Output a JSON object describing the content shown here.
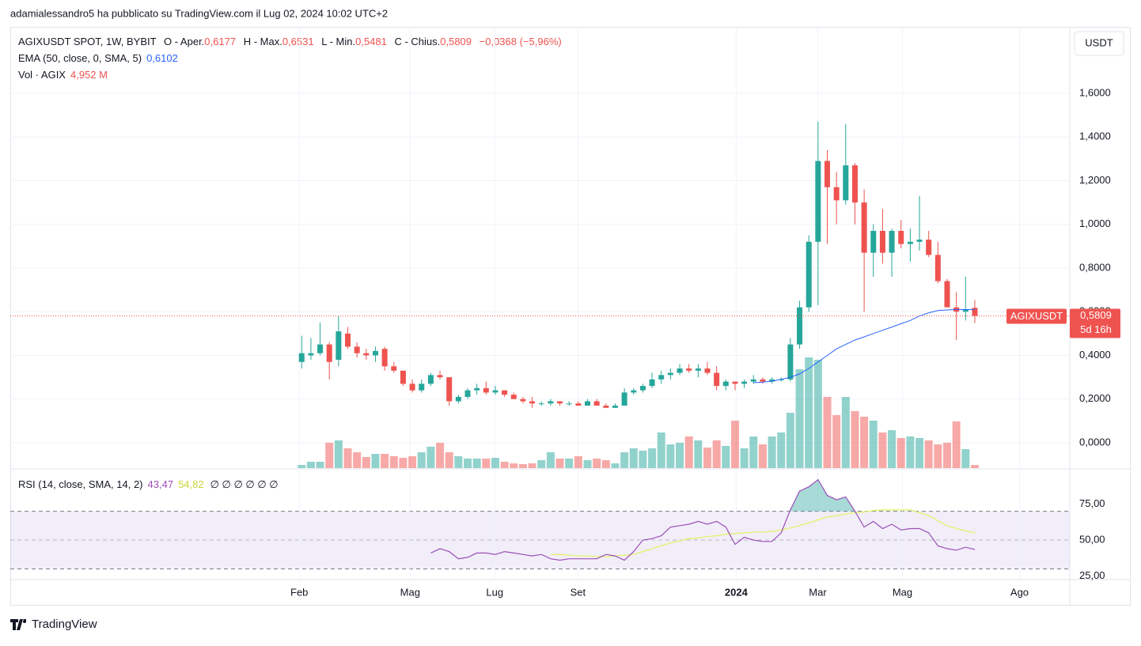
{
  "header": {
    "byline": "adamialessandro5 ha pubblicato su TradingView.com il Lug 02, 2024 10:02 UTC+2",
    "footer": "TradingView",
    "currency": "USDT"
  },
  "legend": {
    "symbol": "AGIXUSDT SPOT, 1W, BYBIT",
    "o_label": "O - Aper.",
    "o": "0,6177",
    "h_label": "H - Max.",
    "h": "0,6531",
    "l_label": "L - Min.",
    "l": "0,5481",
    "c_label": "C - Chius.",
    "c": "0,5809",
    "change": "−0,0368 (−5,96%)",
    "ema_label": "EMA (50, close, 0, SMA, 5)",
    "ema": "0,6102",
    "vol_label": "Vol · AGIX",
    "vol": "4,952 M",
    "rsi_label": "RSI (14, close, SMA, 14, 2)",
    "rsi": "43,47",
    "rsi_ma": "54,82",
    "rsi_extra": "∅ ∅ ∅ ∅ ∅ ∅"
  },
  "chart_data": {
    "type": "candlestick",
    "symbol_tag": "AGIXUSDT",
    "last_label": "0,5809",
    "countdown": "5d 16h",
    "up_color": "#26a69a",
    "down_color": "#ef5350",
    "open": [
      0.37,
      0.4,
      0.41,
      0.45,
      0.38,
      0.5,
      0.44,
      0.41,
      0.4,
      0.43,
      0.35,
      0.33,
      0.27,
      0.24,
      0.27,
      0.31,
      0.3,
      0.19,
      0.21,
      0.24,
      0.25,
      0.23,
      0.24,
      0.22,
      0.2,
      0.19,
      0.18,
      0.18,
      0.19,
      0.18,
      0.18,
      0.17,
      0.19,
      0.17,
      0.16,
      0.17,
      0.23,
      0.24,
      0.26,
      0.29,
      0.31,
      0.32,
      0.34,
      0.33,
      0.34,
      0.32,
      0.26,
      0.28,
      0.27,
      0.28,
      0.29,
      0.28,
      0.29,
      0.29,
      0.45,
      0.62,
      0.92,
      1.29,
      1.17,
      1.11,
      1.27,
      1.1,
      0.87,
      0.97,
      0.87,
      0.97,
      0.91,
      0.92,
      0.93,
      0.86,
      0.74,
      0.62,
      0.6,
      0.6177
    ],
    "high": [
      0.49,
      0.48,
      0.55,
      0.46,
      0.58,
      0.53,
      0.46,
      0.43,
      0.44,
      0.44,
      0.37,
      0.33,
      0.29,
      0.29,
      0.32,
      0.33,
      0.3,
      0.22,
      0.25,
      0.27,
      0.28,
      0.26,
      0.24,
      0.23,
      0.21,
      0.21,
      0.19,
      0.2,
      0.19,
      0.19,
      0.19,
      0.2,
      0.2,
      0.18,
      0.18,
      0.25,
      0.25,
      0.27,
      0.32,
      0.33,
      0.34,
      0.36,
      0.36,
      0.36,
      0.37,
      0.35,
      0.29,
      0.28,
      0.29,
      0.31,
      0.3,
      0.3,
      0.3,
      0.48,
      0.65,
      0.95,
      1.47,
      1.34,
      1.24,
      1.46,
      1.28,
      1.16,
      1.0,
      1.07,
      0.98,
      1.02,
      0.98,
      1.13,
      0.97,
      0.92,
      0.75,
      0.69,
      0.76,
      0.6531
    ],
    "low": [
      0.34,
      0.38,
      0.4,
      0.29,
      0.35,
      0.43,
      0.39,
      0.38,
      0.37,
      0.33,
      0.32,
      0.26,
      0.23,
      0.23,
      0.26,
      0.29,
      0.17,
      0.18,
      0.2,
      0.22,
      0.22,
      0.22,
      0.21,
      0.2,
      0.18,
      0.16,
      0.17,
      0.17,
      0.17,
      0.17,
      0.17,
      0.17,
      0.17,
      0.16,
      0.16,
      0.17,
      0.22,
      0.23,
      0.25,
      0.27,
      0.29,
      0.31,
      0.32,
      0.3,
      0.31,
      0.24,
      0.24,
      0.24,
      0.25,
      0.27,
      0.27,
      0.27,
      0.28,
      0.28,
      0.43,
      0.6,
      0.63,
      0.91,
      1.0,
      1.09,
      1.0,
      0.6,
      0.76,
      0.82,
      0.76,
      0.89,
      0.83,
      0.88,
      0.85,
      0.73,
      0.62,
      0.47,
      0.56,
      0.5481
    ],
    "close": [
      0.41,
      0.41,
      0.45,
      0.37,
      0.51,
      0.44,
      0.41,
      0.4,
      0.42,
      0.35,
      0.33,
      0.27,
      0.24,
      0.27,
      0.31,
      0.3,
      0.19,
      0.21,
      0.24,
      0.25,
      0.23,
      0.24,
      0.22,
      0.2,
      0.19,
      0.18,
      0.18,
      0.19,
      0.18,
      0.18,
      0.17,
      0.19,
      0.17,
      0.16,
      0.17,
      0.23,
      0.24,
      0.26,
      0.29,
      0.31,
      0.32,
      0.34,
      0.33,
      0.34,
      0.32,
      0.26,
      0.28,
      0.27,
      0.28,
      0.29,
      0.28,
      0.29,
      0.29,
      0.45,
      0.62,
      0.92,
      1.29,
      1.17,
      1.11,
      1.27,
      1.1,
      0.87,
      0.97,
      0.87,
      0.97,
      0.91,
      0.92,
      0.93,
      0.86,
      0.74,
      0.62,
      0.6,
      0.61,
      0.5809
    ],
    "volume": [
      5.0,
      9.9,
      9.9,
      39.7,
      43.4,
      31,
      24.8,
      17.4,
      22.3,
      22.3,
      18.6,
      16.1,
      18.6,
      24.8,
      33.5,
      39.7,
      24.8,
      18.6,
      14.9,
      14.9,
      14.9,
      16.1,
      9.9,
      7.4,
      6.2,
      7.4,
      12.4,
      24.8,
      14.9,
      14.9,
      18.6,
      12.4,
      14.9,
      12.4,
      7.4,
      24.8,
      31,
      27.3,
      31,
      55.8,
      37.2,
      39.7,
      49.6,
      43.4,
      32.2,
      43.4,
      34.7,
      74.4,
      31,
      49.6,
      37.2,
      49.6,
      55.8,
      86.8,
      155,
      173.6,
      169.9,
      111.6,
      83.1,
      111.6,
      89.3,
      80.6,
      74.4,
      55.8,
      59.5,
      47.1,
      49.6,
      47.1,
      43.4,
      37.2,
      39.7,
      73.2,
      29.8,
      4.952
    ],
    "ema": {
      "color": "#2962ff",
      "values": [
        null,
        null,
        null,
        null,
        null,
        null,
        null,
        null,
        null,
        null,
        null,
        null,
        null,
        null,
        null,
        null,
        null,
        null,
        null,
        null,
        null,
        null,
        null,
        null,
        null,
        null,
        null,
        null,
        null,
        null,
        null,
        null,
        null,
        null,
        null,
        null,
        null,
        null,
        null,
        null,
        null,
        null,
        null,
        null,
        null,
        null,
        null,
        null,
        null,
        0.275,
        0.278,
        0.282,
        0.29,
        0.3,
        0.315,
        0.34,
        0.37,
        0.4,
        0.43,
        0.45,
        0.47,
        0.485,
        0.5,
        0.515,
        0.53,
        0.545,
        0.56,
        0.58,
        0.595,
        0.605,
        0.608,
        0.61,
        0.61,
        0.6102
      ]
    },
    "xlim": [
      -31.6,
      83.3
    ],
    "xticks": [
      {
        "value": -0.26,
        "label": "Feb"
      },
      {
        "value": 11.76,
        "label": "Mag"
      },
      {
        "value": 20.94,
        "label": "Lug"
      },
      {
        "value": 29.96,
        "label": "Set"
      },
      {
        "value": 47.12,
        "label": "2024"
      },
      {
        "value": 55.97,
        "label": "Mar"
      },
      {
        "value": 65.15,
        "label": "Mag"
      },
      {
        "value": 77.85,
        "label": "Ago"
      }
    ],
    "ylim": [
      -0.116,
      1.904
    ],
    "yticks": [
      {
        "value": 0,
        "label": "0,0000"
      },
      {
        "value": 0.2,
        "label": "0,2000"
      },
      {
        "value": 0.4,
        "label": "0,4000"
      },
      {
        "value": 0.6,
        "label": "0,6000"
      },
      {
        "value": 0.8,
        "label": "0,8000"
      },
      {
        "value": 1.0,
        "label": "1,0000"
      },
      {
        "value": 1.2,
        "label": "1,2000"
      },
      {
        "value": 1.4,
        "label": "1,4000"
      },
      {
        "value": 1.6,
        "label": "1,6000"
      }
    ],
    "grid": true,
    "rsi": {
      "color": "#9c4fb8",
      "ma_color": "#e4f06c",
      "band": [
        30,
        70
      ],
      "ylim": [
        23.1,
        98.9
      ],
      "yticks": [
        {
          "value": 75,
          "label": "75,00"
        },
        {
          "value": 50,
          "label": "50,00"
        },
        {
          "value": 25,
          "label": "25,00"
        }
      ],
      "values": [
        null,
        null,
        null,
        null,
        null,
        null,
        null,
        null,
        null,
        null,
        null,
        null,
        null,
        null,
        41,
        44,
        42,
        37,
        38,
        41,
        41,
        40,
        42,
        41,
        40,
        39,
        40,
        37,
        36,
        37,
        37,
        37,
        37,
        40,
        39,
        36,
        42,
        50,
        51,
        53,
        59,
        60,
        61,
        63,
        61,
        63,
        59,
        47,
        52,
        50,
        49,
        49,
        55,
        71,
        84,
        87,
        92,
        81,
        78,
        80,
        70,
        59,
        63,
        58,
        61,
        57,
        58,
        58,
        55,
        46,
        44,
        43,
        45,
        43.47
      ],
      "ma": [
        null,
        null,
        null,
        null,
        null,
        null,
        null,
        null,
        null,
        null,
        null,
        null,
        null,
        null,
        null,
        null,
        null,
        null,
        null,
        null,
        null,
        null,
        null,
        null,
        null,
        null,
        null,
        40,
        40,
        39.5,
        39,
        39,
        38.5,
        38.5,
        39,
        39.5,
        40,
        42,
        44,
        46,
        48,
        49.5,
        51,
        51.5,
        52.5,
        53,
        54,
        54.5,
        55,
        55.5,
        55.5,
        56,
        57,
        58.5,
        60,
        62,
        64,
        66,
        67,
        68,
        69,
        69.5,
        70.5,
        71,
        71,
        71,
        71,
        69,
        67,
        63.5,
        60,
        58,
        56.5,
        54.82
      ]
    }
  }
}
